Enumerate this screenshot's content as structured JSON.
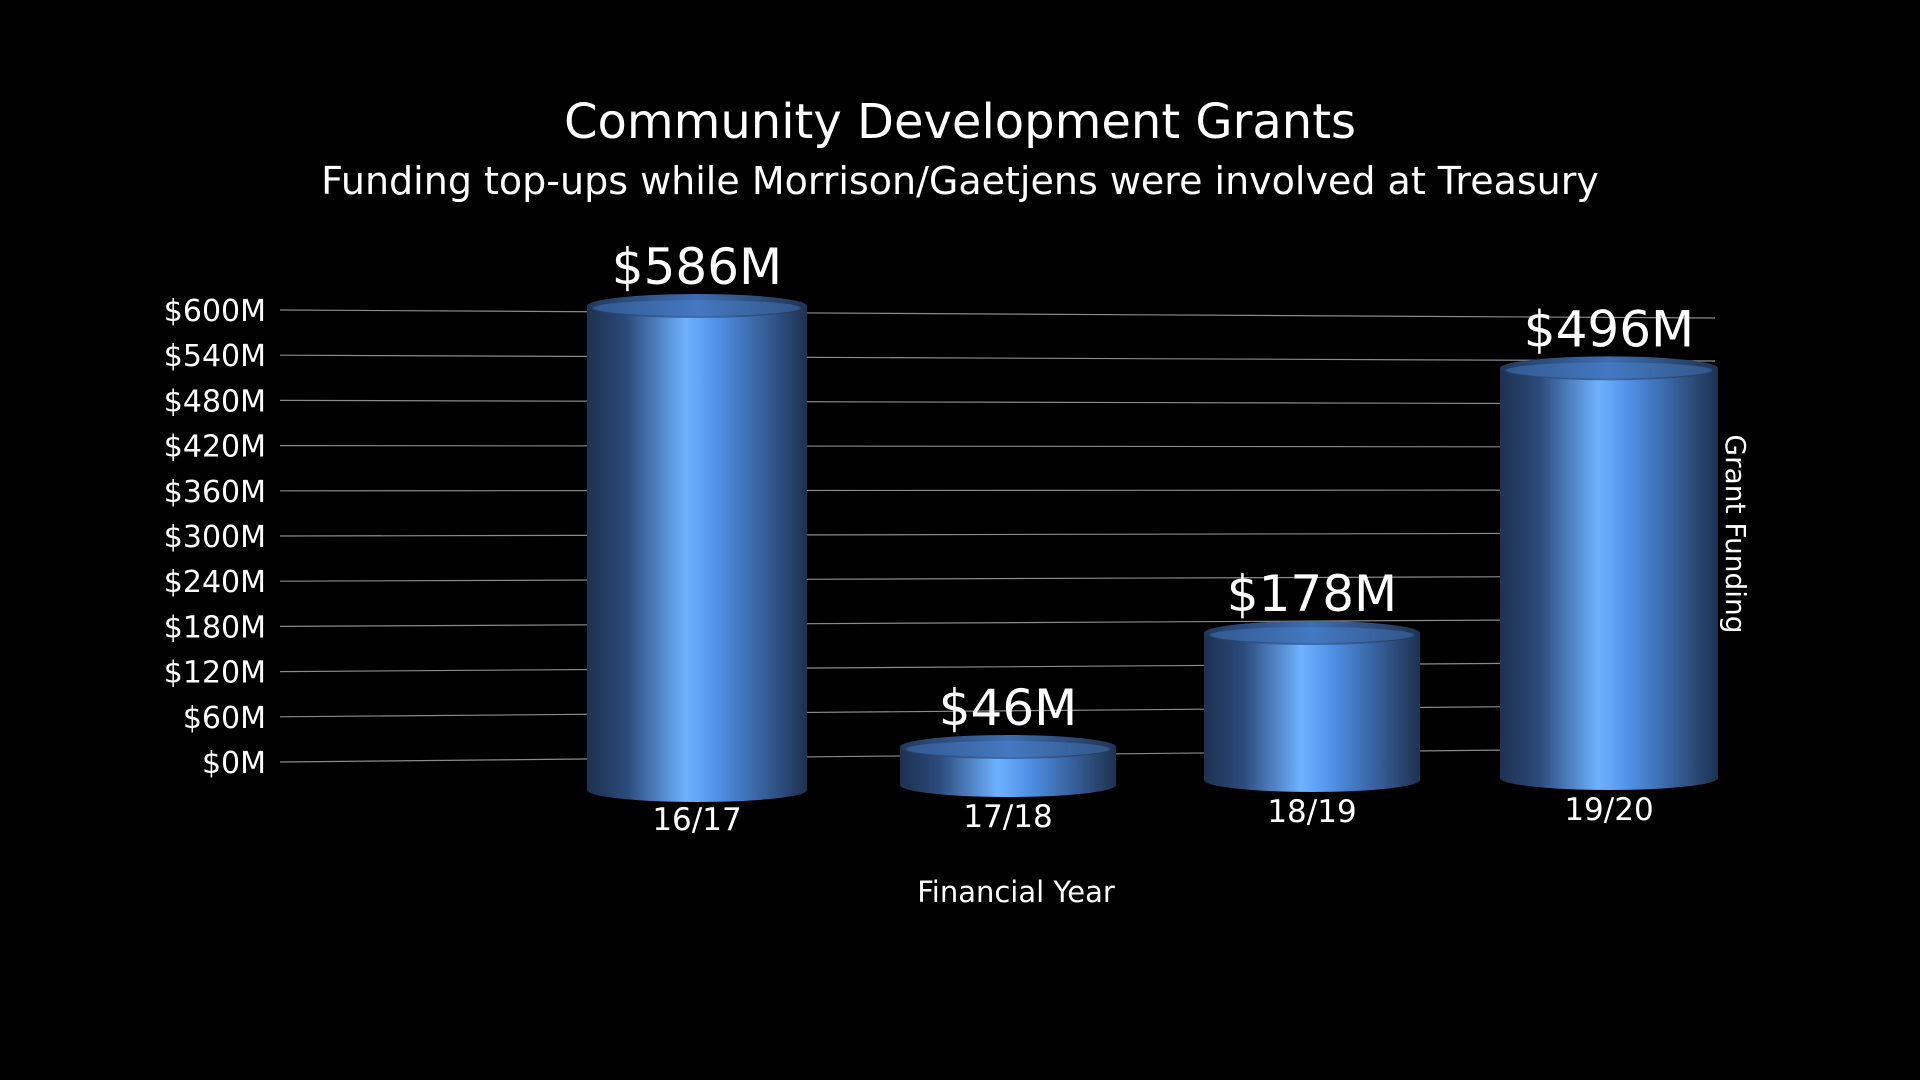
{
  "chart_data": {
    "type": "bar",
    "title": "Community Development Grants",
    "subtitle": "Funding top-ups while Morrison/Gaetjens were involved at Treasury",
    "xlabel": "Financial Year",
    "ylabel": "Grant Funding",
    "categories": [
      "16/17",
      "17/18",
      "18/19",
      "19/20"
    ],
    "values": [
      586,
      46,
      178,
      496
    ],
    "data_labels": [
      "$586M",
      "$46M",
      "$178M",
      "$496M"
    ],
    "unit": "$M",
    "ylim": [
      0,
      600
    ],
    "yticks": [
      0,
      60,
      120,
      180,
      240,
      300,
      360,
      420,
      480,
      540,
      600
    ],
    "ytick_labels": [
      "$0M",
      "$60M",
      "$120M",
      "$180M",
      "$240M",
      "$300M",
      "$360M",
      "$420M",
      "$480M",
      "$540M",
      "$600M"
    ],
    "grid": true,
    "style": "3d-cylinder",
    "bar_color": "#4f8fe6",
    "bar_highlight": "#6fb2ff",
    "bar_shadow": "#1e3150",
    "background": "#000000"
  }
}
